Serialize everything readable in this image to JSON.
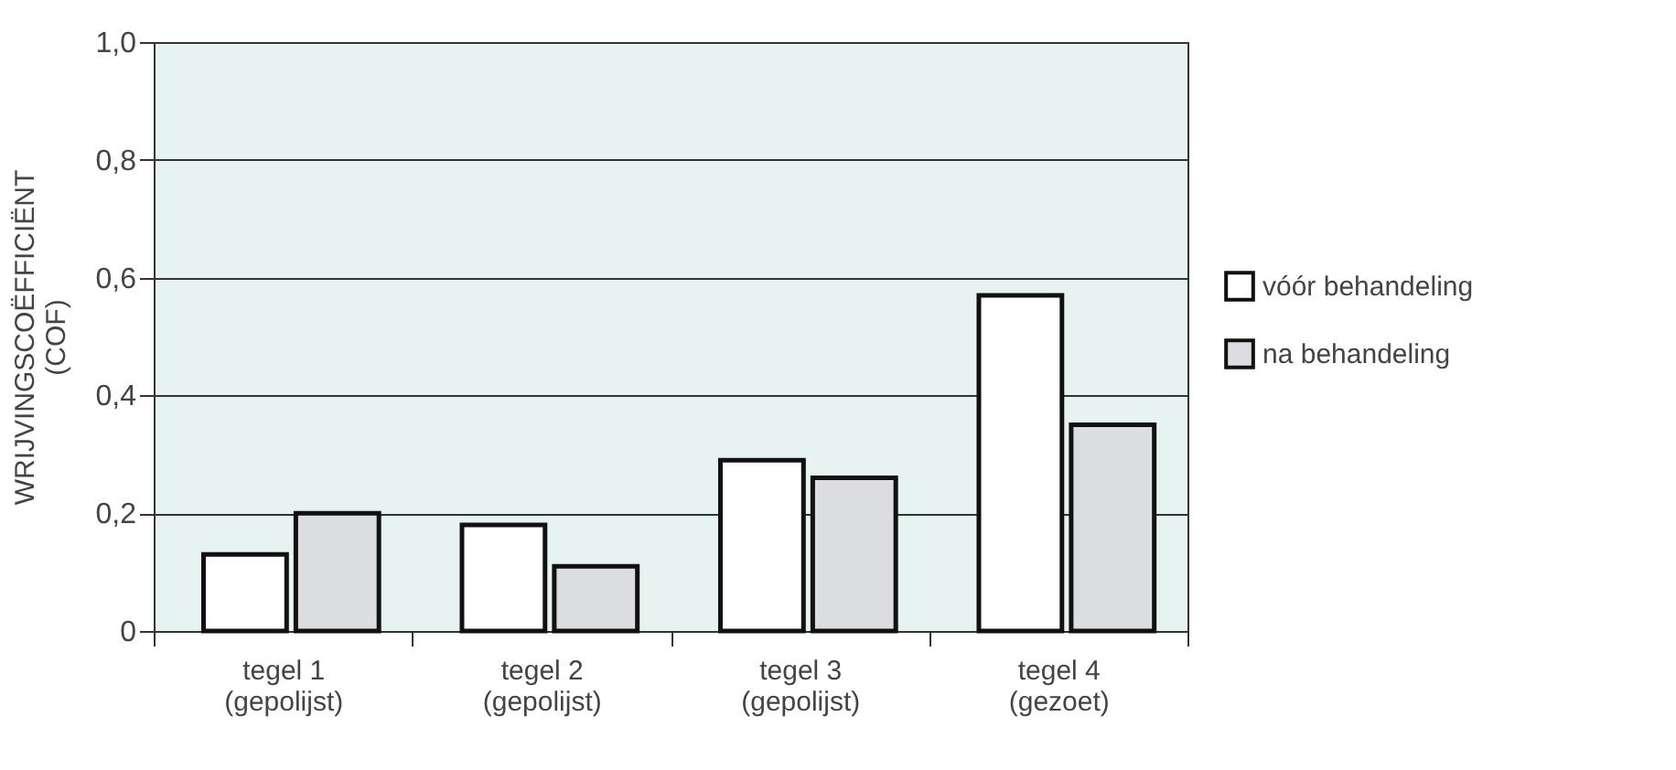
{
  "chart_data": {
    "type": "bar",
    "ylabel": "WRIJVINGSCOËFFICIËNT\n(COF)",
    "categories": [
      "tegel 1\n(gepolijst)",
      "tegel 2\n(gepolijst)",
      "tegel 3\n(gepolijst)",
      "tegel 4\n(gezoet)"
    ],
    "series": [
      {
        "name": "vóór behandeling",
        "color": "#ffffff",
        "values": [
          0.13,
          0.18,
          0.29,
          0.57
        ]
      },
      {
        "name": "na behandeling",
        "color": "#dcdde0",
        "values": [
          0.2,
          0.11,
          0.26,
          0.35
        ]
      }
    ],
    "ylim": [
      0,
      1.0
    ],
    "yticks": [
      0,
      {
        "value": 0.2,
        "label": "0,2"
      },
      {
        "value": 0.4,
        "label": "0,4"
      },
      {
        "value": 0.6,
        "label": "0,6"
      },
      {
        "value": 0.8,
        "label": "0,8"
      },
      {
        "value": 1.0,
        "label": "1,0"
      }
    ],
    "grid": "y",
    "legend": "right"
  }
}
